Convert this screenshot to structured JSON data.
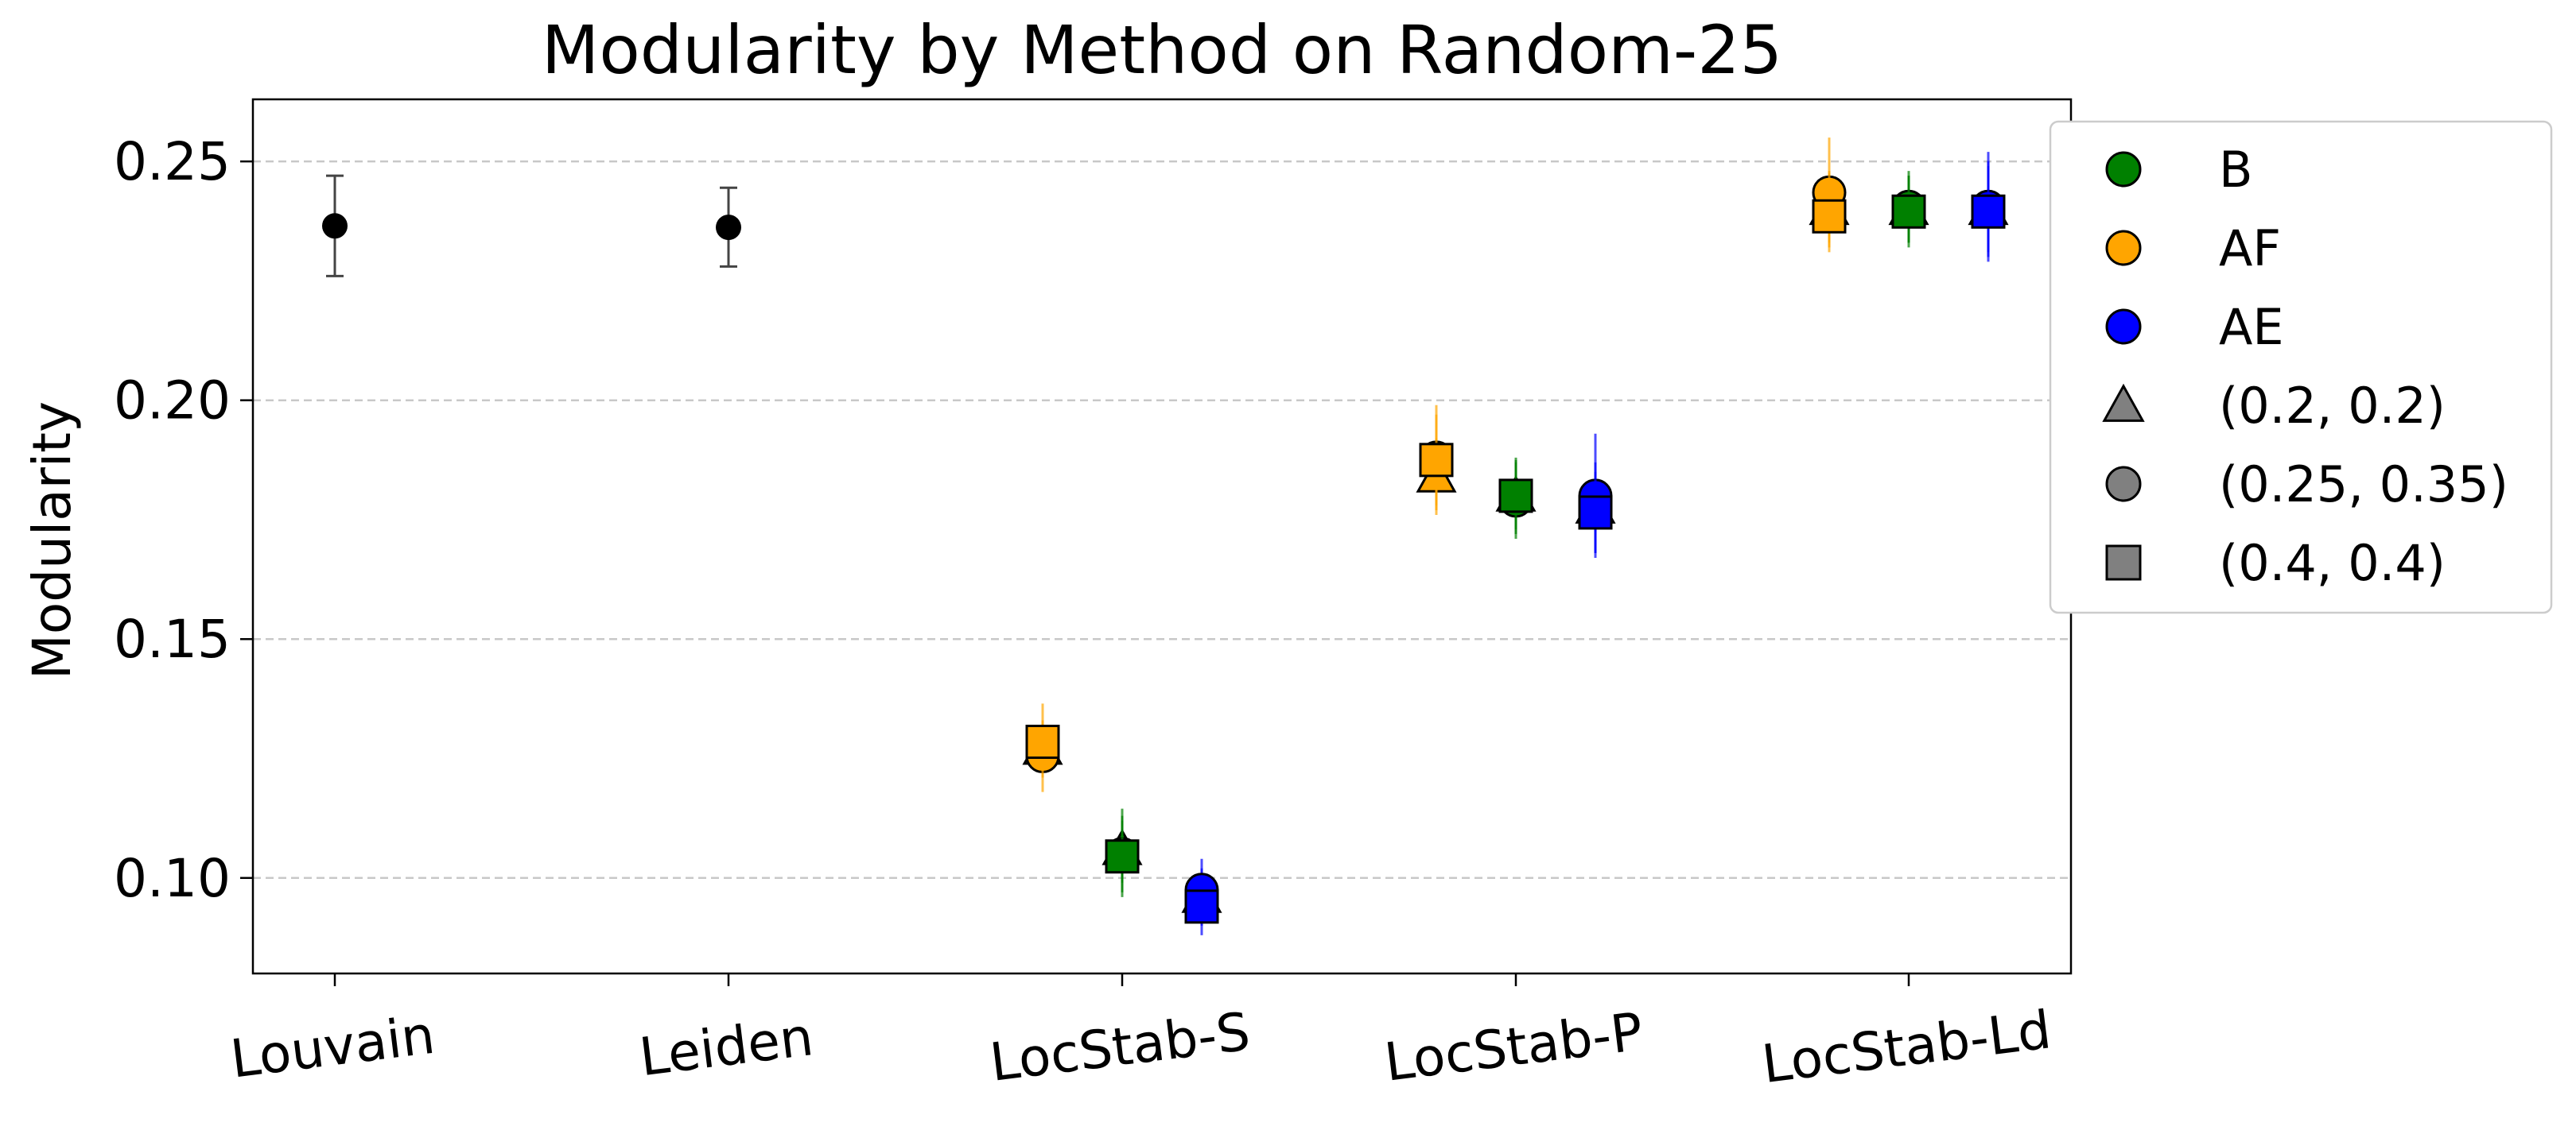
{
  "chart_data": {
    "type": "scatter",
    "title": "Modularity by Method on Random-25",
    "xlabel": "",
    "ylabel": "Modularity",
    "categories": [
      "Louvain",
      "Leiden",
      "LocStab-S",
      "LocStab-P",
      "LocStab-Ld"
    ],
    "ylim": [
      0.08,
      0.263
    ],
    "yticks": [
      0.1,
      0.15,
      0.2,
      0.25
    ],
    "ytick_labels": [
      "0.10",
      "0.15",
      "0.20",
      "0.25"
    ],
    "grid": "horizontal dashed",
    "legend_position": "outside right",
    "baselines": [
      {
        "category": "Louvain",
        "value": 0.2365,
        "err_low": 0.226,
        "err_high": 0.247,
        "color": "#000000"
      },
      {
        "category": "Leiden",
        "value": 0.2362,
        "err_low": 0.228,
        "err_high": 0.2445,
        "color": "#000000"
      }
    ],
    "series": [
      {
        "name": "AF",
        "color": "#FFA500",
        "offset": -1,
        "points": [
          {
            "category": "LocStab-S",
            "params": "(0.2, 0.2)",
            "value": 0.127,
            "err_low": 0.122,
            "err_high": 0.132
          },
          {
            "category": "LocStab-S",
            "params": "(0.25, 0.35)",
            "value": 0.1255,
            "err_low": 0.118,
            "err_high": 0.133
          },
          {
            "category": "LocStab-S",
            "params": "(0.4, 0.4)",
            "value": 0.1285,
            "err_low": 0.121,
            "err_high": 0.1365
          },
          {
            "category": "LocStab-P",
            "params": "(0.2, 0.2)",
            "value": 0.184,
            "err_low": 0.176,
            "err_high": 0.192
          },
          {
            "category": "LocStab-P",
            "params": "(0.25, 0.35)",
            "value": 0.188,
            "err_low": 0.178,
            "err_high": 0.199
          },
          {
            "category": "LocStab-P",
            "params": "(0.4, 0.4)",
            "value": 0.1875,
            "err_low": 0.177,
            "err_high": 0.197
          },
          {
            "category": "LocStab-Ld",
            "params": "(0.2, 0.2)",
            "value": 0.24,
            "err_low": 0.232,
            "err_high": 0.248
          },
          {
            "category": "LocStab-Ld",
            "params": "(0.25, 0.35)",
            "value": 0.2435,
            "err_low": 0.233,
            "err_high": 0.255
          },
          {
            "category": "LocStab-Ld",
            "params": "(0.4, 0.4)",
            "value": 0.2385,
            "err_low": 0.231,
            "err_high": 0.2475
          }
        ]
      },
      {
        "name": "B",
        "color": "#008000",
        "offset": 0,
        "points": [
          {
            "category": "LocStab-S",
            "params": "(0.2, 0.2)",
            "value": 0.106,
            "err_low": 0.099,
            "err_high": 0.113
          },
          {
            "category": "LocStab-S",
            "params": "(0.25, 0.35)",
            "value": 0.105,
            "err_low": 0.096,
            "err_high": 0.1145
          },
          {
            "category": "LocStab-S",
            "params": "(0.4, 0.4)",
            "value": 0.1045,
            "err_low": 0.097,
            "err_high": 0.112
          },
          {
            "category": "LocStab-P",
            "params": "(0.2, 0.2)",
            "value": 0.18,
            "err_low": 0.173,
            "err_high": 0.187
          },
          {
            "category": "LocStab-P",
            "params": "(0.25, 0.35)",
            "value": 0.179,
            "err_low": 0.171,
            "err_high": 0.1875
          },
          {
            "category": "LocStab-P",
            "params": "(0.4, 0.4)",
            "value": 0.18,
            "err_low": 0.172,
            "err_high": 0.188
          },
          {
            "category": "LocStab-Ld",
            "params": "(0.2, 0.2)",
            "value": 0.24,
            "err_low": 0.233,
            "err_high": 0.247
          },
          {
            "category": "LocStab-Ld",
            "params": "(0.25, 0.35)",
            "value": 0.2405,
            "err_low": 0.232,
            "err_high": 0.248
          },
          {
            "category": "LocStab-Ld",
            "params": "(0.4, 0.4)",
            "value": 0.2395,
            "err_low": 0.233,
            "err_high": 0.247
          }
        ]
      },
      {
        "name": "AE",
        "color": "#0000FF",
        "offset": 1,
        "points": [
          {
            "category": "LocStab-S",
            "params": "(0.2, 0.2)",
            "value": 0.096,
            "err_low": 0.09,
            "err_high": 0.102
          },
          {
            "category": "LocStab-S",
            "params": "(0.25, 0.35)",
            "value": 0.0975,
            "err_low": 0.091,
            "err_high": 0.104
          },
          {
            "category": "LocStab-S",
            "params": "(0.4, 0.4)",
            "value": 0.094,
            "err_low": 0.088,
            "err_high": 0.1
          },
          {
            "category": "LocStab-P",
            "params": "(0.2, 0.2)",
            "value": 0.1775,
            "err_low": 0.168,
            "err_high": 0.187
          },
          {
            "category": "LocStab-P",
            "params": "(0.25, 0.35)",
            "value": 0.18,
            "err_low": 0.167,
            "err_high": 0.193
          },
          {
            "category": "LocStab-P",
            "params": "(0.4, 0.4)",
            "value": 0.1765,
            "err_low": 0.168,
            "err_high": 0.185
          },
          {
            "category": "LocStab-Ld",
            "params": "(0.2, 0.2)",
            "value": 0.24,
            "err_low": 0.23,
            "err_high": 0.25
          },
          {
            "category": "LocStab-Ld",
            "params": "(0.25, 0.35)",
            "value": 0.2405,
            "err_low": 0.229,
            "err_high": 0.252
          },
          {
            "category": "LocStab-Ld",
            "params": "(0.4, 0.4)",
            "value": 0.2395,
            "err_low": 0.231,
            "err_high": 0.249
          }
        ]
      }
    ],
    "legend": [
      {
        "label": "B",
        "marker": "circle",
        "color": "#008000"
      },
      {
        "label": "AF",
        "marker": "circle",
        "color": "#FFA500"
      },
      {
        "label": "AE",
        "marker": "circle",
        "color": "#0000FF"
      },
      {
        "label": "(0.2, 0.2)",
        "marker": "triangle",
        "color": "#808080"
      },
      {
        "label": "(0.25, 0.35)",
        "marker": "circle",
        "color": "#808080"
      },
      {
        "label": "(0.4, 0.4)",
        "marker": "square",
        "color": "#808080"
      }
    ]
  }
}
